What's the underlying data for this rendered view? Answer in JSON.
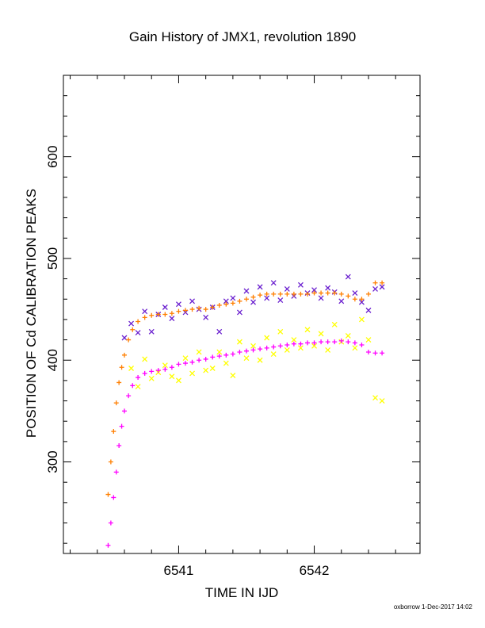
{
  "footer": {
    "stamp": "oxborrow 1-Dec-2017 14:02"
  },
  "chart_data": {
    "type": "scatter",
    "title": "Gain History of JMX1, revolution 1890",
    "xlabel": "TIME IN IJD",
    "ylabel": "POSITION OF Cd CALIBRATION PEAKS",
    "xlim": [
      6540.15,
      6542.78
    ],
    "ylim": [
      210,
      680
    ],
    "xticks": [
      6541,
      6542
    ],
    "yticks": [
      300,
      400,
      500,
      600
    ],
    "grid": false,
    "legend": "none",
    "series": [
      {
        "color": "#6a1fcf",
        "marker": "x",
        "x": [
          6540.6,
          6540.65,
          6540.7,
          6540.75,
          6540.8,
          6540.85,
          6540.9,
          6540.95,
          6541.0,
          6541.05,
          6541.1,
          6541.15,
          6541.2,
          6541.25,
          6541.3,
          6541.35,
          6541.4,
          6541.45,
          6541.5,
          6541.55,
          6541.6,
          6541.65,
          6541.7,
          6541.75,
          6541.8,
          6541.85,
          6541.9,
          6541.95,
          6542.0,
          6542.05,
          6542.1,
          6542.15,
          6542.2,
          6542.25,
          6542.3,
          6542.35,
          6542.4,
          6542.45,
          6542.5
        ],
        "y": [
          422,
          436,
          427,
          448,
          428,
          445,
          452,
          441,
          455,
          447,
          458,
          450,
          442,
          452,
          428,
          458,
          461,
          447,
          468,
          457,
          472,
          461,
          476,
          459,
          470,
          463,
          474,
          466,
          469,
          461,
          471,
          467,
          458,
          482,
          466,
          457,
          449,
          470,
          472
        ]
      },
      {
        "color": "#ff7f00",
        "marker": "+",
        "x": [
          6540.48,
          6540.5,
          6540.52,
          6540.54,
          6540.56,
          6540.58,
          6540.6,
          6540.63,
          6540.66,
          6540.7,
          6540.75,
          6540.8,
          6540.85,
          6540.9,
          6540.95,
          6541.0,
          6541.05,
          6541.1,
          6541.15,
          6541.2,
          6541.25,
          6541.3,
          6541.35,
          6541.4,
          6541.45,
          6541.5,
          6541.55,
          6541.6,
          6541.65,
          6541.7,
          6541.75,
          6541.8,
          6541.85,
          6541.9,
          6541.95,
          6542.0,
          6542.05,
          6542.1,
          6542.15,
          6542.2,
          6542.25,
          6542.3,
          6542.35,
          6542.4,
          6542.45,
          6542.5
        ],
        "y": [
          268,
          300,
          330,
          358,
          378,
          393,
          405,
          420,
          430,
          438,
          442,
          444,
          445,
          445,
          446,
          448,
          449,
          450,
          451,
          450,
          452,
          454,
          455,
          456,
          458,
          460,
          462,
          464,
          465,
          465,
          465,
          465,
          465,
          465,
          465,
          466,
          466,
          466,
          466,
          465,
          463,
          460,
          460,
          465,
          476,
          476
        ]
      },
      {
        "color": "#ffff00",
        "marker": "x",
        "x": [
          6540.65,
          6540.7,
          6540.75,
          6540.8,
          6540.85,
          6540.9,
          6540.95,
          6541.0,
          6541.05,
          6541.1,
          6541.15,
          6541.2,
          6541.25,
          6541.3,
          6541.35,
          6541.4,
          6541.45,
          6541.5,
          6541.55,
          6541.6,
          6541.65,
          6541.7,
          6541.75,
          6541.8,
          6541.85,
          6541.9,
          6541.95,
          6542.0,
          6542.05,
          6542.1,
          6542.15,
          6542.2,
          6542.25,
          6542.3,
          6542.35,
          6542.4,
          6542.45,
          6542.5
        ],
        "y": [
          392,
          374,
          401,
          382,
          388,
          395,
          384,
          380,
          402,
          387,
          408,
          390,
          392,
          408,
          397,
          385,
          418,
          402,
          414,
          400,
          422,
          406,
          428,
          410,
          420,
          412,
          430,
          414,
          426,
          410,
          435,
          418,
          424,
          412,
          440,
          420,
          363,
          360
        ]
      },
      {
        "color": "#ff00ff",
        "marker": "+",
        "x": [
          6540.48,
          6540.5,
          6540.52,
          6540.54,
          6540.56,
          6540.58,
          6540.6,
          6540.63,
          6540.66,
          6540.7,
          6540.75,
          6540.8,
          6540.85,
          6540.9,
          6540.95,
          6541.0,
          6541.05,
          6541.1,
          6541.15,
          6541.2,
          6541.25,
          6541.3,
          6541.35,
          6541.4,
          6541.45,
          6541.5,
          6541.55,
          6541.6,
          6541.65,
          6541.7,
          6541.75,
          6541.8,
          6541.85,
          6541.9,
          6541.95,
          6542.0,
          6542.05,
          6542.1,
          6542.15,
          6542.2,
          6542.25,
          6542.3,
          6542.35,
          6542.4,
          6542.45,
          6542.5
        ],
        "y": [
          218,
          240,
          265,
          290,
          316,
          335,
          350,
          365,
          375,
          383,
          387,
          389,
          390,
          391,
          393,
          396,
          397,
          398,
          400,
          401,
          403,
          404,
          405,
          406,
          408,
          409,
          410,
          411,
          412,
          413,
          414,
          415,
          416,
          416,
          417,
          417,
          418,
          418,
          418,
          419,
          418,
          417,
          415,
          408,
          407,
          407
        ]
      }
    ]
  }
}
